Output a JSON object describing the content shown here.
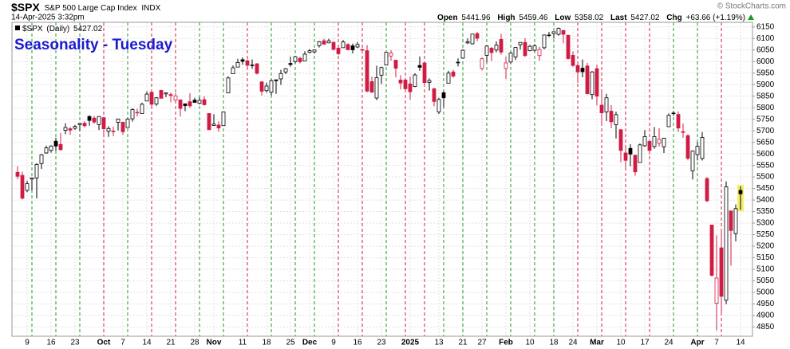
{
  "chart_data": {
    "type": "candlestick",
    "symbol": "$SPX",
    "name": "S&P 500 Large Cap Index",
    "exchange": "INDX",
    "timestamp": "14-Apr-2025 3:32pm",
    "quote_labels": [
      "Open",
      "High",
      "Low",
      "Last",
      "Chg"
    ],
    "change": "+63.66 (+1.19%)",
    "credit": "© StockCharts.com",
    "period": "(Daily)",
    "title": "Seasonality - Tuesday",
    "categories": [
      null,
      null,
      "9",
      null,
      null,
      null,
      null,
      "16",
      null,
      null,
      null,
      null,
      "23",
      null,
      null,
      null,
      null,
      null,
      "Oct",
      null,
      null,
      null,
      "7",
      null,
      null,
      null,
      null,
      "14",
      null,
      null,
      null,
      null,
      "21",
      null,
      null,
      null,
      null,
      "28",
      null,
      null,
      null,
      "Nov",
      null,
      null,
      null,
      null,
      null,
      "11",
      null,
      null,
      null,
      null,
      "18",
      null,
      null,
      null,
      null,
      "25",
      null,
      null,
      null,
      "Dec",
      null,
      null,
      null,
      null,
      "9",
      null,
      null,
      null,
      null,
      "16",
      null,
      null,
      null,
      null,
      "23",
      null,
      null,
      null,
      null,
      null,
      "2025",
      null,
      null,
      null,
      null,
      null,
      "13",
      null,
      null,
      null,
      null,
      "21",
      null,
      null,
      null,
      "27",
      null,
      null,
      null,
      null,
      "Feb",
      null,
      null,
      null,
      null,
      "10",
      null,
      null,
      null,
      null,
      "18",
      null,
      null,
      null,
      "24",
      null,
      null,
      null,
      null,
      "Mar",
      null,
      null,
      null,
      null,
      "10",
      null,
      null,
      null,
      null,
      "17",
      null,
      null,
      null,
      null,
      "24",
      null,
      null,
      null,
      null,
      null,
      "Apr",
      null,
      null,
      null,
      "7",
      null,
      null,
      null,
      null,
      "14"
    ],
    "series": [
      {
        "name": "$SPX",
        "open": [
          5520,
          5507,
          5442,
          5491,
          5496,
          5558,
          5604,
          5615,
          5655,
          5641,
          5702,
          5709,
          5711,
          5727,
          5733,
          5762,
          5755,
          5727,
          5757,
          5698,
          5698,
          5737,
          5737,
          5714,
          5752,
          5778,
          5775,
          5829,
          5867,
          5816,
          5875,
          5860,
          5857,
          5833,
          5834,
          5817,
          5826,
          5833,
          5819,
          5835,
          5775,
          5723,
          5725,
          5722,
          5864,
          5947,
          5976,
          6008,
          6003,
          5985,
          5990,
          5912,
          5874,
          5867,
          5921,
          5925,
          5955,
          5992,
          6000,
          6014,
          6003,
          6040,
          6042,
          6069,
          6090,
          6081,
          6083,
          6058,
          6060,
          6074,
          6068,
          6063,
          6052,
          6047,
          5913,
          5842,
          5941,
          5985,
          6024,
          6006,
          5920,
          5920,
          5903,
          5892,
          5983,
          5994,
          5910,
          5882,
          5782,
          5865,
          5906,
          5955,
          5995,
          6015,
          6081,
          6077,
          6121,
          5970,
          6027,
          6058,
          6050,
          6096,
          5970,
          5998,
          6020,
          6073,
          6083,
          6047,
          6049,
          6026,
          6060,
          6115,
          6121,
          6118,
          6135,
          6114,
          6027,
          5983,
          5971,
          5981,
          5857,
          5969,
          5811,
          5782,
          5785,
          5726,
          5705,
          5604,
          5624,
          5594,
          5563,
          5635,
          5654,
          5632,
          5646,
          5631,
          5718,
          5775,
          5771,
          5696,
          5679,
          5527,
          5597,
          5580,
          5493,
          5292,
          4953,
          5193,
          4966,
          5353,
          5255,
          5441.96
        ],
        "high": [
          5546,
          5523,
          5484,
          5497,
          5560,
          5600,
          5636,
          5637,
          5670,
          5690,
          5733,
          5716,
          5725,
          5735,
          5741,
          5767,
          5765,
          5763,
          5757,
          5720,
          5718,
          5753,
          5739,
          5757,
          5797,
          5796,
          5822,
          5871,
          5871,
          5846,
          5878,
          5866,
          5866,
          5863,
          5835,
          5817,
          5863,
          5843,
          5847,
          5850,
          5776,
          5772,
          5741,
          5784,
          5936,
          5983,
          6012,
          6018,
          6009,
          6009,
          5994,
          5915,
          5909,
          5923,
          5921,
          5964,
          5972,
          6021,
          6025,
          6021,
          6045,
          6053,
          6052,
          6089,
          6099,
          6099,
          6088,
          6066,
          6093,
          6079,
          6078,
          6085,
          6057,
          6071,
          5935,
          5982,
          5978,
          6040,
          6050,
          6006,
          5941,
          5929,
          5935,
          5949,
          6022,
          6000,
          5927,
          5886,
          5843,
          5871,
          5960,
          5964,
          6014,
          6052,
          6100,
          6119,
          6128,
          6018,
          6070,
          6063,
          6087,
          6120,
          6022,
          6042,
          6062,
          6084,
          6101,
          6073,
          6076,
          6064,
          6116,
          6128,
          6129,
          6147,
          6135,
          6115,
          6044,
          5993,
          6009,
          5994,
          5959,
          5986,
          5866,
          5860,
          5812,
          5783,
          5705,
          5636,
          5642,
          5597,
          5645,
          5703,
          5654,
          5716,
          5711,
          5670,
          5775,
          5786,
          5784,
          5732,
          5685,
          5615,
          5651,
          5695,
          5500,
          5292,
          5247,
          5268,
          5481,
          5353,
          5381,
          5459.46
        ],
        "low": [
          5490,
          5403,
          5434,
          5442,
          5407,
          5535,
          5601,
          5605,
          5614,
          5615,
          5686,
          5683,
          5704,
          5698,
          5715,
          5722,
          5730,
          5703,
          5681,
          5674,
          5677,
          5702,
          5683,
          5714,
          5740,
          5762,
          5775,
          5829,
          5807,
          5808,
          5840,
          5846,
          5824,
          5821,
          5762,
          5785,
          5799,
          5823,
          5814,
          5810,
          5703,
          5723,
          5696,
          5722,
          5864,
          5947,
          5976,
          5986,
          5963,
          5969,
          5944,
          5853,
          5866,
          5853,
          5860,
          5899,
          5945,
          5978,
          5992,
          5992,
          6003,
          6035,
          6034,
          6061,
          6075,
          6080,
          6048,
          6028,
          6060,
          6051,
          6035,
          6059,
          6035,
          5867,
          5866,
          5833,
          5903,
          5983,
          6004,
          5932,
          5879,
          5868,
          5834,
          5889,
          5960,
          5891,
          5874,
          5807,
          5773,
          5802,
          5906,
          5930,
          5979,
          6015,
          6076,
          6074,
          6088,
          5962,
          5996,
          6002,
          6040,
          6030,
          5924,
          5991,
          6007,
          6052,
          6020,
          6045,
          6042,
          6004,
          6053,
          6107,
          6100,
          6112,
          6080,
          6009,
          5978,
          5908,
          5932,
          5858,
          5837,
          5810,
          5733,
          5742,
          5711,
          5667,
          5564,
          5528,
          5546,
          5505,
          5563,
          5631,
          5597,
          5622,
          5632,
          5604,
          5718,
          5765,
          5695,
          5670,
          5572,
          5489,
          5572,
          5571,
          5391,
          5069,
          4835,
          4911,
          4949,
          5116,
          5221,
          5358.02
        ],
        "close": [
          5503,
          5408,
          5471,
          5496,
          5554,
          5596,
          5626,
          5634,
          5634,
          5618,
          5714,
          5703,
          5719,
          5732,
          5722,
          5745,
          5738,
          5762,
          5709,
          5710,
          5699,
          5751,
          5696,
          5751,
          5792,
          5780,
          5815,
          5859,
          5815,
          5843,
          5841,
          5864,
          5853,
          5851,
          5797,
          5809,
          5808,
          5823,
          5832,
          5813,
          5705,
          5729,
          5712,
          5782,
          5929,
          5973,
          5996,
          6001,
          5984,
          5985,
          5949,
          5871,
          5894,
          5917,
          5917,
          5948,
          5969,
          5987,
          6021,
          5999,
          6032,
          6047,
          6050,
          6086,
          6075,
          6090,
          6053,
          6034,
          6085,
          6051,
          6051,
          6074,
          6050,
          5872,
          5867,
          5930,
          5974,
          6040,
          6037,
          5971,
          5907,
          5882,
          5869,
          5942,
          5975,
          5909,
          5918,
          5827,
          5836,
          5843,
          5950,
          5937,
          5997,
          6049,
          6086,
          6119,
          6101,
          6012,
          6067,
          6039,
          6071,
          6041,
          5994,
          6037,
          6061,
          6083,
          6026,
          6066,
          6068,
          6052,
          6115,
          6115,
          6129,
          6144,
          6118,
          6013,
          5983,
          5955,
          5956,
          5861,
          5955,
          5850,
          5778,
          5843,
          5739,
          5770,
          5615,
          5572,
          5599,
          5522,
          5639,
          5675,
          5615,
          5675,
          5663,
          5668,
          5767,
          5777,
          5712,
          5693,
          5581,
          5612,
          5633,
          5671,
          5397,
          5074,
          5062,
          4983,
          5457,
          5268,
          5363,
          5427.02
        ]
      }
    ],
    "ylim": [
      4810,
      6170
    ],
    "yticks": [
      4850,
      4900,
      4950,
      5000,
      5050,
      5100,
      5150,
      5200,
      5250,
      5300,
      5350,
      5400,
      5450,
      5500,
      5550,
      5600,
      5650,
      5700,
      5750,
      5800,
      5850,
      5900,
      5950,
      6000,
      6050,
      6100,
      6150
    ],
    "grid": true,
    "up_color": "#000000",
    "down_color": "#d01c44",
    "seasonal_up_color": "#1f9a1f",
    "seasonal_down_color": "#d01c44",
    "title_color": "#1a1ad0"
  }
}
